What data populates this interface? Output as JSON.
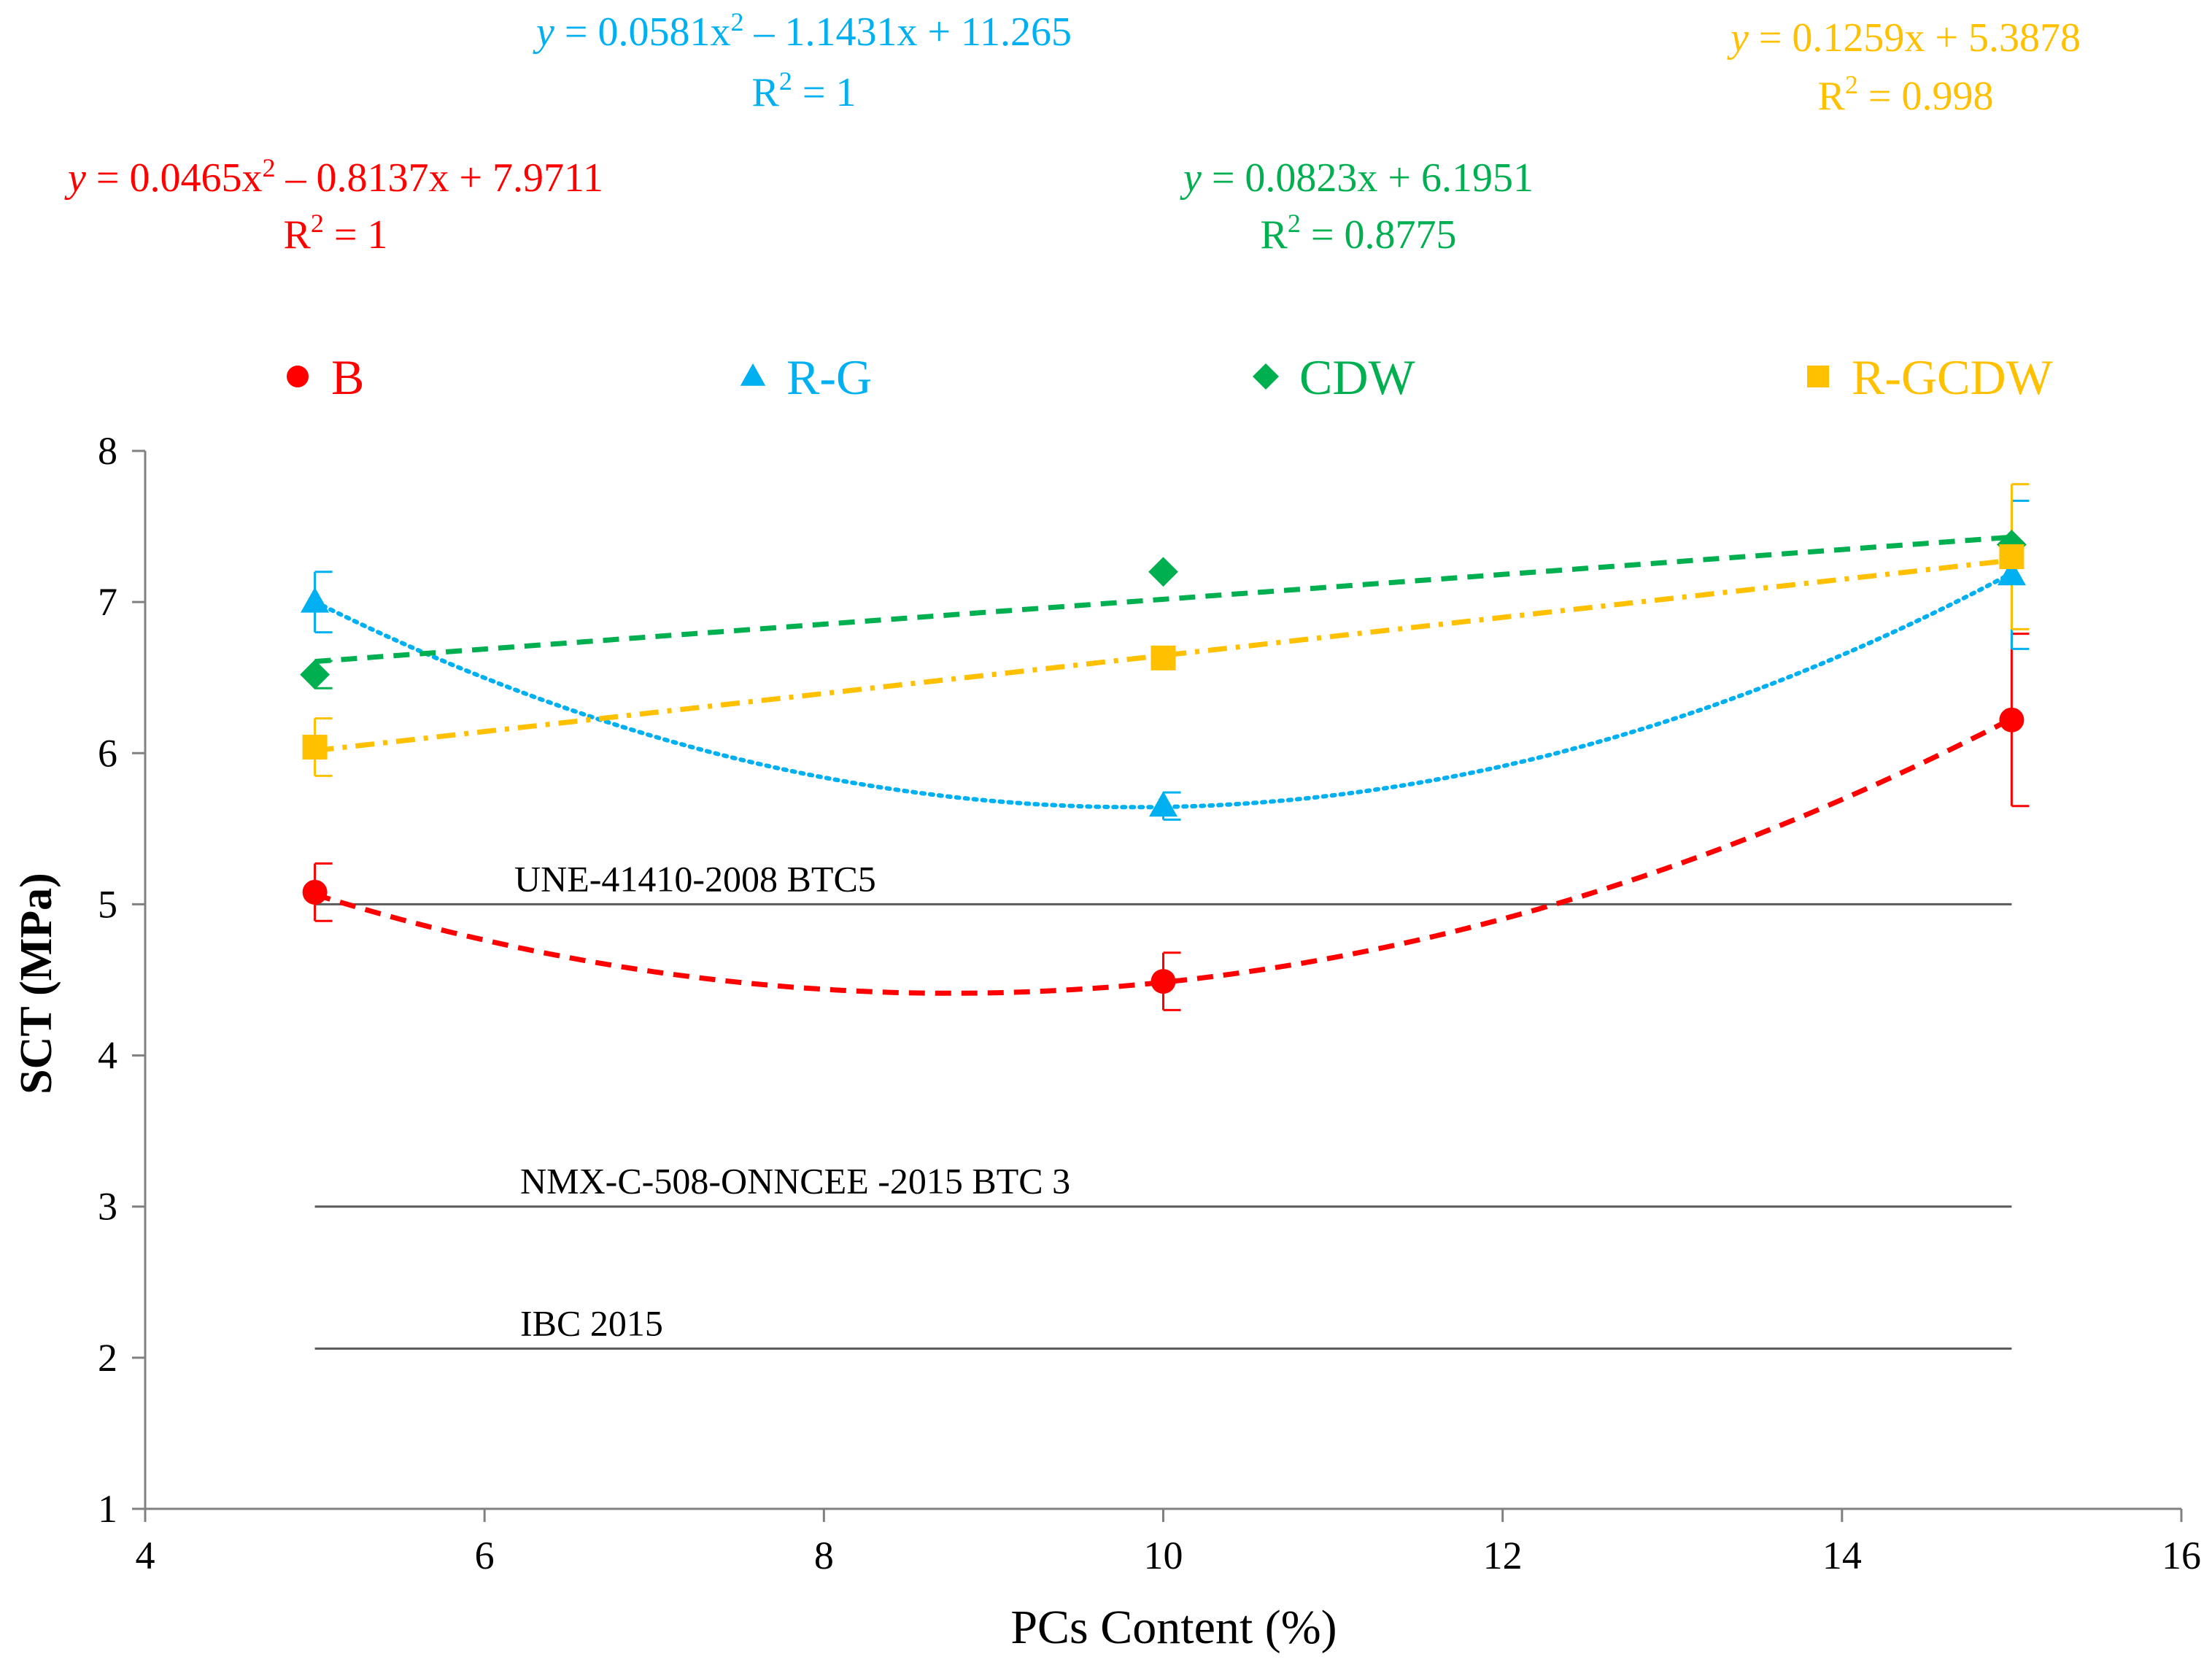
{
  "chart_data": {
    "type": "scatter",
    "xlabel": "PCs Content (%)",
    "ylabel": "SCT (MPa)",
    "xlim": [
      4,
      16
    ],
    "ylim": [
      1,
      8
    ],
    "x_ticks": [
      "4",
      "6",
      "8",
      "10",
      "12",
      "14",
      "16"
    ],
    "y_ticks": [
      "1",
      "2",
      "3",
      "4",
      "5",
      "6",
      "7",
      "8"
    ],
    "x": [
      5,
      10,
      15
    ],
    "series": [
      {
        "name": "B",
        "color": "#ff0000",
        "marker": "circle",
        "values": [
          5.08,
          4.49,
          6.22
        ],
        "errors": [
          0.19,
          0.19,
          0.57
        ],
        "trend": {
          "type": "poly2",
          "a": 0.0465,
          "b": -0.8137,
          "c": 7.9711,
          "style": "dashed"
        },
        "equation": {
          "y_sym": "y",
          "rest": " = 0.0465x",
          "sup": "2",
          "tail": " – 0.8137x + 7.9711",
          "r_base": "R",
          "r_sup": "2",
          "r_val": " = 1"
        }
      },
      {
        "name": "R-G",
        "color": "#00b0f0",
        "marker": "triangle",
        "values": [
          7.0,
          5.65,
          7.18
        ],
        "errors": [
          0.2,
          0.09,
          0.49
        ],
        "trend": {
          "type": "poly2",
          "a": 0.0581,
          "b": -1.1431,
          "c": 11.265,
          "style": "dotted"
        },
        "equation": {
          "y_sym": "y",
          "rest": " = 0.0581x",
          "sup": "2",
          "tail": " – 1.1431x + 11.265",
          "r_base": "R",
          "r_sup": "2",
          "r_val": " = 1"
        }
      },
      {
        "name": "CDW",
        "color": "#00b050",
        "marker": "diamond",
        "values": [
          6.52,
          7.2,
          7.38
        ],
        "errors": [
          0.09,
          0,
          0
        ],
        "trend": {
          "type": "linear",
          "a": 0.0823,
          "b": 6.1951,
          "style": "dashed"
        },
        "equation": {
          "y_sym": "y",
          "rest": " = 0.0823x + 6.1951",
          "sup": "",
          "tail": "",
          "r_base": "R",
          "r_sup": "2",
          "r_val": " = 0.8775"
        }
      },
      {
        "name": "R-GCDW",
        "color": "#ffc000",
        "marker": "square",
        "values": [
          6.04,
          6.63,
          7.3
        ],
        "errors": [
          0.19,
          0,
          0.48
        ],
        "trend": {
          "type": "linear",
          "a": 0.1259,
          "b": 5.3878,
          "style": "dashdot"
        },
        "equation": {
          "y_sym": "y",
          "rest": " = 0.1259x + 5.3878",
          "sup": "",
          "tail": "",
          "r_base": "R",
          "r_sup": "2",
          "r_val": " = 0.998"
        }
      }
    ],
    "reference_lines": [
      {
        "label": "UNE-41410-2008 BTC5",
        "y": 5,
        "x_from": 5,
        "x_to": 15
      },
      {
        "label": "NMX-C-508-ONNCEE -2015 BTC 3",
        "y": 3,
        "x_from": 5,
        "x_to": 15
      },
      {
        "label": "IBC 2015",
        "y": 2.06,
        "x_from": 5,
        "x_to": 15
      }
    ],
    "legend_position": "top"
  }
}
